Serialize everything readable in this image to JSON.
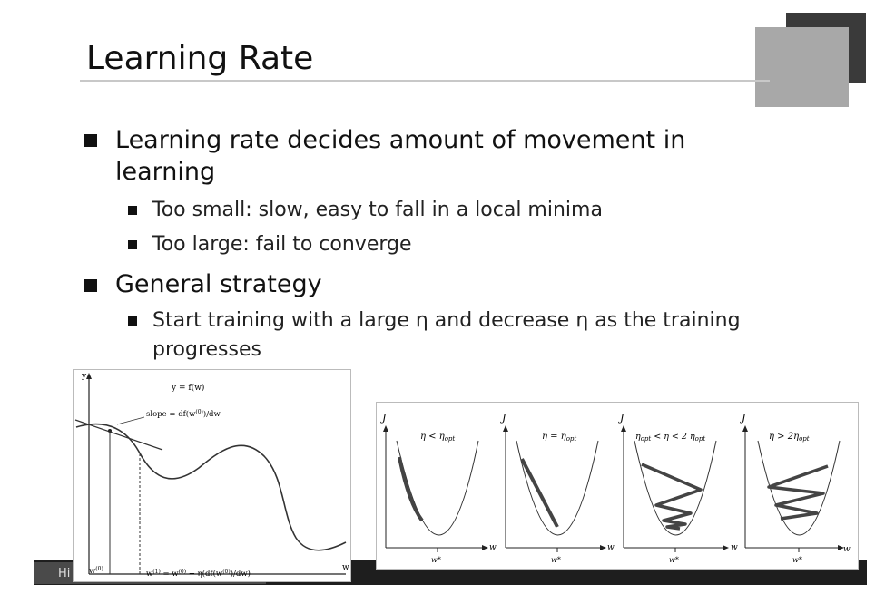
{
  "slide": {
    "title": "Learning Rate",
    "bullets": [
      {
        "line1": "Learning rate decides amount of movement in",
        "line2": "learning",
        "sub": [
          "Too small: slow, easy to fall in a local minima",
          "Too large: fail to converge"
        ]
      },
      {
        "line1": "General strategy",
        "sub_lines": [
          "Start training with a large η and decrease η as the training",
          "progresses"
        ]
      }
    ],
    "footer_text": "Hi"
  },
  "figure_left": {
    "y_axis": "y",
    "x_axis": "w",
    "func_label": "y = f(w)",
    "slope_label": "slope = df(w",
    "slope_sup": "(0)",
    "slope_tail": ")/dw",
    "w0_label": "w",
    "w0_sup": "(0)",
    "update_label": "w",
    "update_sup": "(1)",
    "update_mid": " = w",
    "update_sup2": "(0)",
    "update_tail": " − η(df(w",
    "update_sup3": "(0)",
    "update_end": ")/dw)"
  },
  "figure_right": {
    "panels": [
      {
        "J": "J",
        "cond": "η < η",
        "cond_sub": "opt",
        "w": "w",
        "wstar": "w*"
      },
      {
        "J": "J",
        "cond": "η = η",
        "cond_sub": "opt",
        "w": "w",
        "wstar": "w*"
      },
      {
        "J": "J",
        "cond_pre": "η",
        "cond_pre_sub": "opt",
        "cond": " < η < 2 η",
        "cond_sub": "opt",
        "w": "w",
        "wstar": "w*"
      },
      {
        "J": "J",
        "cond": "η > 2η",
        "cond_sub": "opt",
        "w": "w",
        "wstar": "w*"
      }
    ]
  }
}
